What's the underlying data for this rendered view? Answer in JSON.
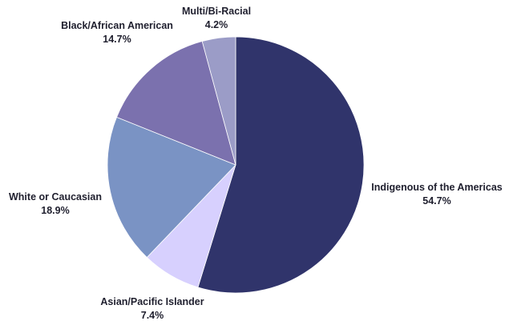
{
  "chart_data": {
    "type": "pie",
    "title": "",
    "slices": [
      {
        "label": "Indigenous of the Americas",
        "value": 54.7,
        "value_text": "54.7%",
        "color": "#30346b"
      },
      {
        "label": "Asian/Pacific Islander",
        "value": 7.4,
        "value_text": "7.4%",
        "color": "#d7d0fe"
      },
      {
        "label": "White or Caucasian",
        "value": 18.9,
        "value_text": "18.9%",
        "color": "#7a93c4"
      },
      {
        "label": "Black/African American",
        "value": 14.7,
        "value_text": "14.7%",
        "color": "#7b71ae"
      },
      {
        "label": "Multi/Bi-Racial",
        "value": 4.2,
        "value_text": "4.2%",
        "color": "#9b9cc7"
      }
    ],
    "start_angle": "12 o'clock",
    "direction": "clockwise",
    "legend": "none",
    "labels": "outside, category name above percentage"
  }
}
